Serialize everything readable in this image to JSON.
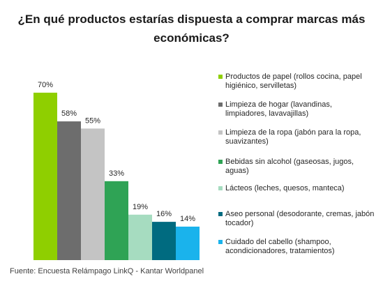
{
  "chart_data": {
    "type": "bar",
    "title": "¿En qué productos estarías dispuesta a comprar marcas más económicas?",
    "categories": [
      "Productos de papel (rollos cocina, papel higiénico, servilletas)",
      "Limpieza de hogar (lavandinas, limpiadores, lavavajillas)",
      "Limpieza de la ropa (jabón para la ropa, suavizantes)",
      "Bebidas sin alcohol (gaseosas, jugos, aguas)",
      "Lácteos (leches, quesos, manteca)",
      "Aseo personal (desodorante, cremas, jabón tocador)",
      "Cuidado del cabello (shampoo, acondicionadores, tratamientos)"
    ],
    "values": [
      70,
      58,
      55,
      33,
      19,
      16,
      14
    ],
    "data_labels": [
      "70%",
      "58%",
      "55%",
      "33%",
      "19%",
      "16%",
      "14%"
    ],
    "colors": [
      "#8fcf00",
      "#6d6d6d",
      "#c4c4c4",
      "#2fa355",
      "#a6dcc0",
      "#006b80",
      "#1ab3ec"
    ],
    "ylim": [
      0,
      80
    ],
    "grid": false,
    "legend": "right",
    "xlabel": "",
    "ylabel": ""
  },
  "source": "Fuente: Encuesta Relámpago LinkQ - Kantar Worldpanel"
}
